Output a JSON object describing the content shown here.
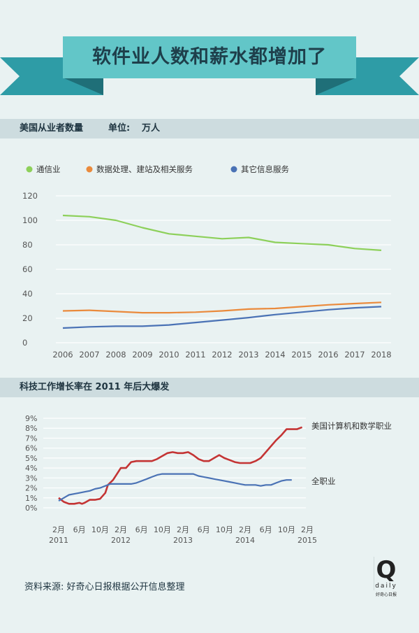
{
  "header": {
    "title": "软件业人数和薪水都增加了"
  },
  "section1": {
    "label": "美国从业者数量",
    "unit_label": "单位:",
    "unit_value": "万人"
  },
  "section2": {
    "label": "科技工作增长率在 2011 年后大爆发"
  },
  "footer": {
    "source": "资料来源: 好奇心日报根据公开信息整理"
  },
  "logo": {
    "letter": "Q",
    "word": "daily",
    "sub": "好奇心日报"
  },
  "colors": {
    "green": "#8dd05a",
    "orange": "#ea8a3c",
    "blue": "#4a72b5",
    "red": "#c43434",
    "banner": "#62c6c8",
    "banner_dark": "#2e9ca6"
  },
  "chart_data": [
    {
      "type": "line",
      "categories": [
        "2006",
        "2007",
        "2008",
        "2009",
        "2010",
        "2011",
        "2012",
        "2013",
        "2014",
        "2015",
        "2016",
        "2017",
        "2018"
      ],
      "series": [
        {
          "name": "通信业",
          "color": "#8dd05a",
          "values": [
            104,
            103,
            100,
            94,
            89,
            87,
            85,
            86,
            82,
            81,
            80,
            77,
            75.5
          ]
        },
        {
          "name": "数据处理、建站及相关服务",
          "color": "#ea8a3c",
          "values": [
            26,
            26.5,
            25.5,
            24.5,
            24.5,
            25,
            26,
            27.5,
            28,
            29.5,
            31,
            32,
            33
          ]
        },
        {
          "name": "其它信息服务",
          "color": "#4a72b5",
          "values": [
            12,
            13,
            13.5,
            13.5,
            14.5,
            16.5,
            18.5,
            20.5,
            23,
            25,
            27,
            28.5,
            29.5
          ]
        }
      ],
      "yticks": [
        "0",
        "20",
        "40",
        "60",
        "80",
        "100",
        "120"
      ],
      "ylim": [
        0,
        120
      ]
    },
    {
      "type": "line",
      "x_ticks": [
        {
          "month": 2,
          "month_label": "2月",
          "year_label": "2011"
        },
        {
          "month": 6,
          "month_label": "6月",
          "year_label": ""
        },
        {
          "month": 10,
          "month_label": "10月",
          "year_label": ""
        },
        {
          "month": 14,
          "month_label": "2月",
          "year_label": "2012"
        },
        {
          "month": 18,
          "month_label": "6月",
          "year_label": ""
        },
        {
          "month": 22,
          "month_label": "10月",
          "year_label": ""
        },
        {
          "month": 26,
          "month_label": "2月",
          "year_label": "2013"
        },
        {
          "month": 30,
          "month_label": "6月",
          "year_label": ""
        },
        {
          "month": 34,
          "month_label": "10月",
          "year_label": ""
        },
        {
          "month": 38,
          "month_label": "2月",
          "year_label": "2014"
        },
        {
          "month": 42,
          "month_label": "6月",
          "year_label": ""
        },
        {
          "month": 46,
          "month_label": "10月",
          "year_label": ""
        },
        {
          "month": 50,
          "month_label": "2月",
          "year_label": "2015"
        }
      ],
      "yticks": [
        "0%",
        "1%",
        "2%",
        "3%",
        "4%",
        "5%",
        "6%",
        "7%",
        "8%",
        "9%"
      ],
      "ylim": [
        0,
        9
      ],
      "series": [
        {
          "name": "美国计算机和数学职业",
          "color": "#c43434",
          "points": [
            [
              2,
              1.0
            ],
            [
              3,
              0.6
            ],
            [
              4,
              0.4
            ],
            [
              5,
              0.4
            ],
            [
              6,
              0.5
            ],
            [
              6.5,
              0.4
            ],
            [
              7,
              0.5
            ],
            [
              8,
              0.8
            ],
            [
              9,
              0.8
            ],
            [
              10,
              0.9
            ],
            [
              11,
              1.5
            ],
            [
              11.5,
              2.3
            ],
            [
              12.5,
              2.8
            ],
            [
              13.5,
              3.6
            ],
            [
              14,
              4.0
            ],
            [
              15,
              4.0
            ],
            [
              16,
              4.6
            ],
            [
              17,
              4.7
            ],
            [
              18,
              4.7
            ],
            [
              19,
              4.7
            ],
            [
              20,
              4.7
            ],
            [
              21,
              4.9
            ],
            [
              22,
              5.2
            ],
            [
              23,
              5.5
            ],
            [
              24,
              5.6
            ],
            [
              25,
              5.5
            ],
            [
              26,
              5.5
            ],
            [
              27,
              5.6
            ],
            [
              28,
              5.3
            ],
            [
              29,
              4.9
            ],
            [
              30,
              4.7
            ],
            [
              31,
              4.7
            ],
            [
              32,
              5.0
            ],
            [
              33,
              5.3
            ],
            [
              34,
              5.0
            ],
            [
              35,
              4.8
            ],
            [
              36,
              4.6
            ],
            [
              37,
              4.5
            ],
            [
              38,
              4.5
            ],
            [
              39,
              4.5
            ],
            [
              40,
              4.7
            ],
            [
              41,
              5.0
            ],
            [
              42,
              5.6
            ],
            [
              43,
              6.2
            ],
            [
              44,
              6.8
            ],
            [
              45,
              7.3
            ],
            [
              46,
              7.9
            ],
            [
              47,
              7.9
            ],
            [
              48,
              7.9
            ],
            [
              49,
              8.1
            ]
          ]
        },
        {
          "name": "全职业",
          "color": "#4a72b5",
          "points": [
            [
              2,
              0.7
            ],
            [
              3,
              1.0
            ],
            [
              4,
              1.3
            ],
            [
              5,
              1.4
            ],
            [
              6,
              1.5
            ],
            [
              7,
              1.6
            ],
            [
              8,
              1.7
            ],
            [
              9,
              1.9
            ],
            [
              10,
              2.0
            ],
            [
              11,
              2.2
            ],
            [
              12,
              2.4
            ],
            [
              13,
              2.4
            ],
            [
              14,
              2.4
            ],
            [
              15,
              2.4
            ],
            [
              16,
              2.4
            ],
            [
              17,
              2.5
            ],
            [
              18,
              2.7
            ],
            [
              19,
              2.9
            ],
            [
              20,
              3.1
            ],
            [
              21,
              3.3
            ],
            [
              22,
              3.4
            ],
            [
              23,
              3.4
            ],
            [
              24,
              3.4
            ],
            [
              25,
              3.4
            ],
            [
              26,
              3.4
            ],
            [
              27,
              3.4
            ],
            [
              28,
              3.4
            ],
            [
              29,
              3.2
            ],
            [
              30,
              3.1
            ],
            [
              31,
              3.0
            ],
            [
              32,
              2.9
            ],
            [
              33,
              2.8
            ],
            [
              34,
              2.7
            ],
            [
              35,
              2.6
            ],
            [
              36,
              2.5
            ],
            [
              37,
              2.4
            ],
            [
              38,
              2.3
            ],
            [
              39,
              2.3
            ],
            [
              40,
              2.3
            ],
            [
              41,
              2.2
            ],
            [
              42,
              2.3
            ],
            [
              43,
              2.3
            ],
            [
              44,
              2.5
            ],
            [
              45,
              2.7
            ],
            [
              46,
              2.8
            ],
            [
              47,
              2.8
            ]
          ]
        }
      ]
    }
  ]
}
